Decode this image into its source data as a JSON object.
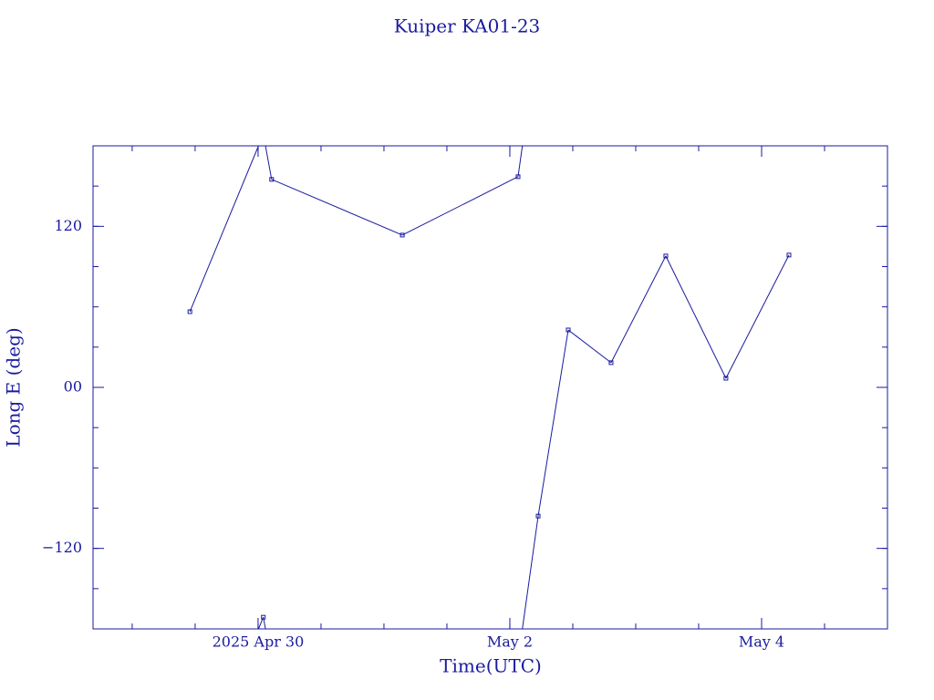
{
  "chart_data": {
    "type": "line",
    "title": "Kuiper KA01-23",
    "x_label": "Time(UTC)",
    "y_label": "Long E (deg)",
    "x": [
      "2025-04-29T11:00Z",
      "2025-04-30T01:00Z",
      "2025-04-30T02:35Z",
      "2025-05-01T03:30Z",
      "2025-05-02T01:34Z",
      "2025-05-02T05:24Z",
      "2025-05-02T11:08Z",
      "2025-05-02T19:18Z",
      "2025-05-03T05:44Z",
      "2025-05-03T17:12Z",
      "2025-05-04T05:13Z"
    ],
    "series": [
      {
        "name": "Long E",
        "color": "#1a1aa0",
        "values": [
          56.4,
          -171.3,
          155,
          113.5,
          157,
          -95.9,
          42.8,
          18.4,
          97.9,
          6.8,
          98.6
        ]
      }
    ],
    "xlim": [
      "2025-04-28T16:32Z",
      "2025-05-05T00:00Z"
    ],
    "xticks": [
      {
        "value": "2025-04-30T00:00Z",
        "label": "2025 Apr 30"
      },
      {
        "value": "2025-05-02T00:00Z",
        "label": "May  2"
      },
      {
        "value": "2025-05-04T00:00Z",
        "label": "May  4"
      }
    ],
    "ylim": [
      -180,
      180
    ],
    "yticks": [
      {
        "value": -120,
        "label": "−120"
      },
      {
        "value": 0,
        "label": "00"
      },
      120
    ],
    "wrap": true
  }
}
